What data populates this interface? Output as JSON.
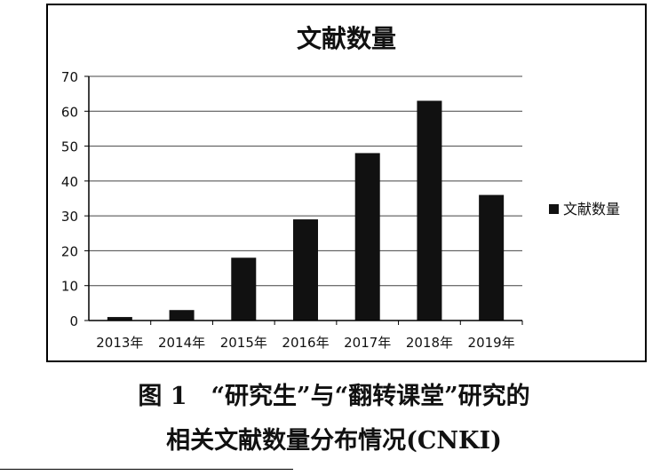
{
  "chart_data": {
    "type": "bar",
    "title": "文献数量",
    "categories": [
      "2013年",
      "2014年",
      "2015年",
      "2016年",
      "2017年",
      "2018年",
      "2019年"
    ],
    "series": [
      {
        "name": "文献数量",
        "values": [
          1,
          3,
          18,
          29,
          48,
          63,
          36
        ],
        "color": "#111111"
      }
    ],
    "yticks": [
      "0",
      "10",
      "20",
      "30",
      "40",
      "50",
      "60",
      "70"
    ],
    "ylim": [
      0,
      70
    ],
    "grid": true,
    "legend_position": "right"
  },
  "caption": {
    "line1": "图 1　“研究生”与“翻转课堂”研究的",
    "line2": "相关文献数量分布情况(CNKI)"
  }
}
